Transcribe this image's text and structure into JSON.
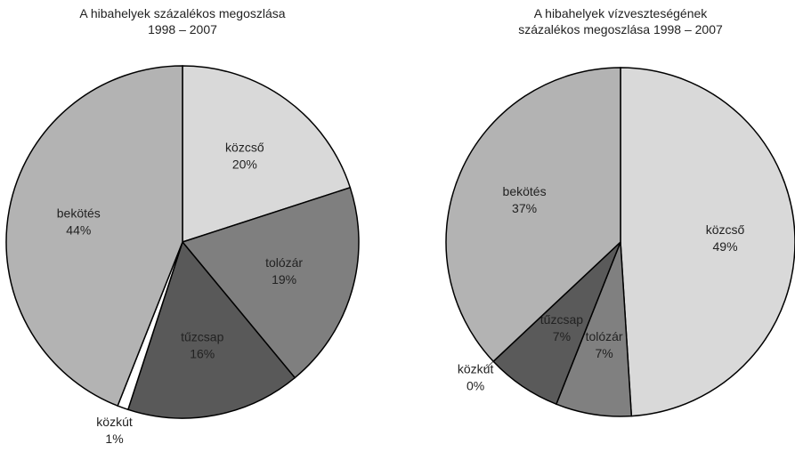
{
  "chart_data": [
    {
      "type": "pie",
      "title": "A hibahelyek százalékos megoszlása\n1998 – 2007",
      "categories": [
        "közcső",
        "tolózár",
        "tűzcsap",
        "közkút",
        "bekötés"
      ],
      "values": [
        20,
        19,
        16,
        1,
        44
      ],
      "value_labels": [
        "20%",
        "19%",
        "16%",
        "1%",
        "44%"
      ],
      "colors": [
        "#d9d9d9",
        "#7f7f7f",
        "#595959",
        "#ffffff",
        "#b3b3b3"
      ]
    },
    {
      "type": "pie",
      "title": "A hibahelyek vízveszteségének\nszázalékos megoszlása 1998 – 2007",
      "categories": [
        "közcső",
        "tolózár",
        "tűzcsap",
        "közkút",
        "bekötés"
      ],
      "values": [
        49,
        7,
        7,
        0,
        37
      ],
      "value_labels": [
        "49%",
        "7%",
        "7%",
        "0%",
        "37%"
      ],
      "colors": [
        "#d9d9d9",
        "#808080",
        "#5a5a5a",
        "#ffffff",
        "#b3b3b3"
      ]
    }
  ]
}
